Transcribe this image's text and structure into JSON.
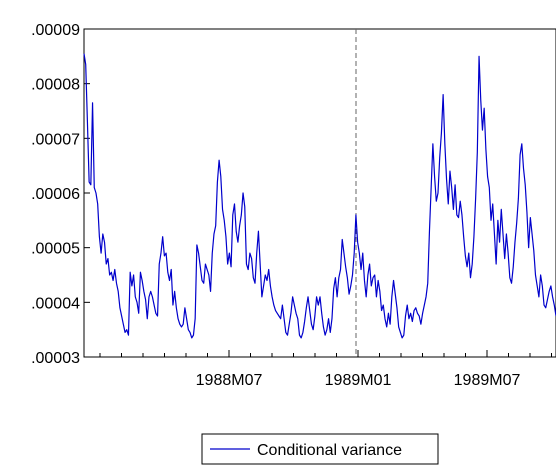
{
  "chart_data": {
    "type": "line",
    "title": "",
    "xlabel": "",
    "ylabel": "",
    "ylim": [
      3e-05,
      9e-05
    ],
    "y_ticks": [
      3e-05,
      4e-05,
      5e-05,
      6e-05,
      7e-05,
      8e-05,
      9e-05
    ],
    "y_tick_labels": [
      ".00003",
      ".00004",
      ".00005",
      ".00006",
      ".00007",
      ".00008",
      ".00009"
    ],
    "x_tick_labels": [
      "1988M07",
      "1989M01",
      "1989M07"
    ],
    "vertical_marker": {
      "label": "1989M01",
      "style": "dashed",
      "color": "#666666"
    },
    "grid": false,
    "legend": {
      "placement": "bottom-center",
      "entries": [
        "Conditional variance"
      ]
    },
    "series": [
      {
        "name": "Conditional variance",
        "color": "#0000cc",
        "y": [
          8.55e-05,
          8.35e-05,
          7.3e-05,
          6.2e-05,
          6.15e-05,
          7.65e-05,
          6.1e-05,
          6e-05,
          5.8e-05,
          5.2e-05,
          4.9e-05,
          5.25e-05,
          5.1e-05,
          4.7e-05,
          4.8e-05,
          4.5e-05,
          4.55e-05,
          4.4e-05,
          4.6e-05,
          4.35e-05,
          4.2e-05,
          3.9e-05,
          3.75e-05,
          3.6e-05,
          3.45e-05,
          3.5e-05,
          3.4e-05,
          4.55e-05,
          4.3e-05,
          4.5e-05,
          4.1e-05,
          4e-05,
          3.8e-05,
          4.55e-05,
          4.4e-05,
          4.2e-05,
          4.05e-05,
          3.7e-05,
          4.1e-05,
          4.2e-05,
          4.1e-05,
          3.95e-05,
          3.8e-05,
          3.75e-05,
          4.7e-05,
          4.9e-05,
          5.2e-05,
          4.85e-05,
          4.9e-05,
          4.55e-05,
          4.4e-05,
          4.6e-05,
          3.95e-05,
          4.2e-05,
          3.9e-05,
          3.7e-05,
          3.6e-05,
          3.55e-05,
          3.6e-05,
          3.9e-05,
          3.7e-05,
          3.5e-05,
          3.45e-05,
          3.35e-05,
          3.4e-05,
          3.7e-05,
          5.05e-05,
          4.9e-05,
          4.65e-05,
          4.4e-05,
          4.35e-05,
          4.7e-05,
          4.6e-05,
          4.5e-05,
          4.2e-05,
          4.9e-05,
          5.25e-05,
          5.4e-05,
          6.2e-05,
          6.6e-05,
          6.3e-05,
          5.7e-05,
          5.5e-05,
          5.2e-05,
          4.7e-05,
          4.9e-05,
          4.65e-05,
          5.6e-05,
          5.8e-05,
          5.3e-05,
          5.1e-05,
          5.4e-05,
          5.6e-05,
          6e-05,
          5.75e-05,
          4.7e-05,
          4.6e-05,
          4.9e-05,
          4.8e-05,
          4.45e-05,
          4.35e-05,
          4.9e-05,
          5.3e-05,
          4.7e-05,
          4.1e-05,
          4.3e-05,
          4.5e-05,
          4.4e-05,
          4.6e-05,
          4.3e-05,
          4.1e-05,
          3.95e-05,
          3.85e-05,
          3.8e-05,
          3.75e-05,
          3.7e-05,
          3.95e-05,
          3.7e-05,
          3.45e-05,
          3.4e-05,
          3.6e-05,
          3.8e-05,
          4.1e-05,
          3.95e-05,
          3.8e-05,
          3.7e-05,
          3.4e-05,
          3.35e-05,
          3.45e-05,
          3.65e-05,
          3.9e-05,
          4.1e-05,
          3.85e-05,
          3.6e-05,
          3.5e-05,
          3.75e-05,
          4.1e-05,
          3.95e-05,
          4.1e-05,
          3.8e-05,
          3.55e-05,
          3.4e-05,
          3.5e-05,
          3.7e-05,
          3.45e-05,
          3.7e-05,
          4.25e-05,
          4.45e-05,
          4.1e-05,
          4.45e-05,
          4.6e-05,
          5.15e-05,
          4.9e-05,
          4.65e-05,
          4.45e-05,
          4.15e-05,
          4.3e-05,
          4.5e-05,
          4.9e-05,
          5.6e-05,
          5.1e-05,
          4.9e-05,
          4.6e-05,
          4.9e-05,
          4.4e-05,
          4.1e-05,
          4.5e-05,
          4.7e-05,
          4.3e-05,
          4.45e-05,
          4.5e-05,
          4.1e-05,
          4.4e-05,
          4.2e-05,
          3.85e-05,
          3.95e-05,
          3.7e-05,
          3.55e-05,
          3.8e-05,
          3.6e-05,
          4.1e-05,
          4.4e-05,
          4.15e-05,
          3.9e-05,
          3.55e-05,
          3.45e-05,
          3.35e-05,
          3.4e-05,
          3.75e-05,
          3.95e-05,
          3.7e-05,
          3.8e-05,
          3.65e-05,
          3.85e-05,
          3.9e-05,
          3.8e-05,
          3.75e-05,
          3.6e-05,
          3.8e-05,
          3.95e-05,
          4.1e-05,
          4.35e-05,
          5.3e-05,
          6.1e-05,
          6.9e-05,
          6.3e-05,
          5.85e-05,
          6e-05,
          6.65e-05,
          7.1e-05,
          7.8e-05,
          6.9e-05,
          6.25e-05,
          5.8e-05,
          6.4e-05,
          6.1e-05,
          5.7e-05,
          6.15e-05,
          5.6e-05,
          5.55e-05,
          5.85e-05,
          5.6e-05,
          5.2e-05,
          4.85e-05,
          4.65e-05,
          4.9e-05,
          4.45e-05,
          4.7e-05,
          5.2e-05,
          5.9e-05,
          6.75e-05,
          8.5e-05,
          7.7e-05,
          7.15e-05,
          7.55e-05,
          6.8e-05,
          6.3e-05,
          6.1e-05,
          5.5e-05,
          5.8e-05,
          5.25e-05,
          4.7e-05,
          5.5e-05,
          5.1e-05,
          5.7e-05,
          5.25e-05,
          4.8e-05,
          5.25e-05,
          4.9e-05,
          4.45e-05,
          4.35e-05,
          4.65e-05,
          5.1e-05,
          5.45e-05,
          5.9e-05,
          6.7e-05,
          6.9e-05,
          6.45e-05,
          6.15e-05,
          5.65e-05,
          5e-05,
          5.55e-05,
          5.25e-05,
          4.95e-05,
          4.5e-05,
          4.3e-05,
          4.1e-05,
          4.5e-05,
          4.3e-05,
          3.95e-05,
          3.9e-05,
          4.05e-05,
          4.2e-05,
          4.3e-05,
          4.1e-05,
          3.95e-05,
          3.75e-05
        ]
      }
    ]
  }
}
